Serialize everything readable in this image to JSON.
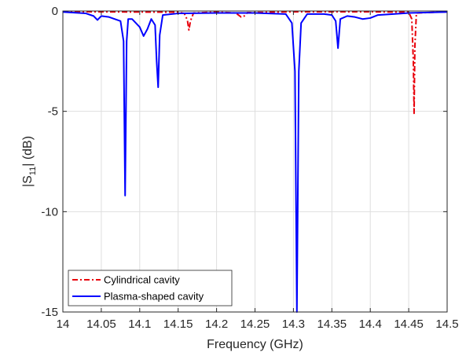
{
  "chart_data": {
    "type": "line",
    "title": "",
    "xlabel": "Frequency (GHz)",
    "ylabel_main": "|S",
    "ylabel_sub": "11",
    "ylabel_tail": "| (dB)",
    "xlim": [
      14,
      14.5
    ],
    "ylim": [
      -15,
      0
    ],
    "xticks": [
      14,
      14.05,
      14.1,
      14.15,
      14.2,
      14.25,
      14.3,
      14.35,
      14.4,
      14.45,
      14.5
    ],
    "xtick_labels": [
      "14",
      "14.05",
      "14.1",
      "14.15",
      "14.2",
      "14.25",
      "14.3",
      "14.35",
      "14.4",
      "14.45",
      "14.5"
    ],
    "yticks": [
      -15,
      -10,
      -5,
      0
    ],
    "ytick_labels": [
      "-15",
      "-10",
      "-5",
      "0"
    ],
    "grid": true,
    "legend_position": "bottom-left",
    "series": [
      {
        "name": "Cylindrical cavity",
        "color": "#e8000b",
        "style": "dashdot",
        "x": [
          14,
          14.05,
          14.1,
          14.15,
          14.158,
          14.162,
          14.164,
          14.166,
          14.17,
          14.2,
          14.225,
          14.232,
          14.236,
          14.24,
          14.3,
          14.4,
          14.45,
          14.454,
          14.456,
          14.457,
          14.458,
          14.46,
          14.5
        ],
        "y": [
          -0.03,
          -0.04,
          -0.05,
          -0.06,
          -0.12,
          -0.45,
          -0.95,
          -0.5,
          -0.1,
          -0.05,
          -0.1,
          -0.3,
          -0.25,
          -0.08,
          -0.04,
          -0.04,
          -0.06,
          -0.4,
          -2.5,
          -5.1,
          -1.8,
          -0.1,
          -0.04
        ]
      },
      {
        "name": "Plasma-shaped cavity",
        "color": "#0000ff",
        "style": "solid",
        "x": [
          14,
          14.03,
          14.04,
          14.045,
          14.05,
          14.06,
          14.075,
          14.079,
          14.081,
          14.083,
          14.085,
          14.09,
          14.1,
          14.105,
          14.11,
          14.115,
          14.12,
          14.122,
          14.124,
          14.126,
          14.13,
          14.15,
          14.2,
          14.25,
          14.29,
          14.298,
          14.302,
          14.3045,
          14.307,
          14.31,
          14.318,
          14.34,
          14.35,
          14.355,
          14.358,
          14.361,
          14.37,
          14.38,
          14.39,
          14.4,
          14.41,
          14.43,
          14.45,
          14.5
        ],
        "y": [
          -0.05,
          -0.12,
          -0.25,
          -0.45,
          -0.25,
          -0.3,
          -0.5,
          -1.5,
          -9.2,
          -1.5,
          -0.4,
          -0.4,
          -0.8,
          -1.25,
          -0.9,
          -0.4,
          -0.7,
          -2.5,
          -3.8,
          -1.2,
          -0.2,
          -0.12,
          -0.1,
          -0.1,
          -0.15,
          -0.6,
          -3.0,
          -15,
          -3.0,
          -0.6,
          -0.15,
          -0.15,
          -0.2,
          -0.5,
          -1.85,
          -0.4,
          -0.25,
          -0.3,
          -0.4,
          -0.35,
          -0.2,
          -0.15,
          -0.1,
          -0.05
        ]
      }
    ]
  }
}
